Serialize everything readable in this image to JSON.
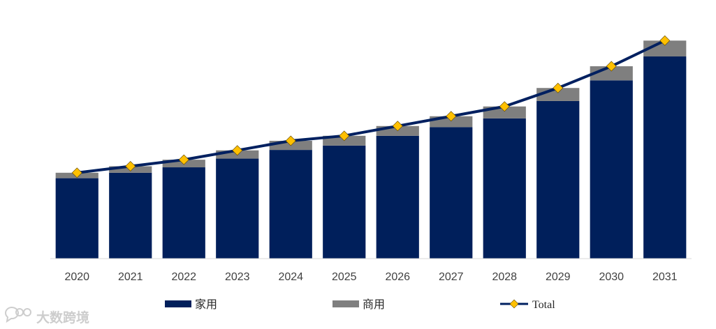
{
  "chart_data": {
    "type": "bar",
    "stacked": true,
    "categories": [
      "2020",
      "2021",
      "2022",
      "2023",
      "2024",
      "2025",
      "2026",
      "2027",
      "2028",
      "2029",
      "2030",
      "2031"
    ],
    "series": [
      {
        "name": "家用",
        "type": "bar",
        "color": "#001F5B",
        "values": [
          37,
          39.5,
          42,
          46,
          50,
          52,
          56.5,
          60.5,
          64.5,
          72.5,
          82,
          93
        ]
      },
      {
        "name": "商用",
        "type": "bar",
        "color": "#7F7F7F",
        "values": [
          2.5,
          3,
          3.5,
          3.8,
          4.2,
          4.5,
          4.5,
          5,
          5.5,
          6,
          6.5,
          7.3
        ]
      },
      {
        "name": "Total",
        "type": "line",
        "color": "#002060",
        "marker_color": "#FFC000",
        "values": [
          39.5,
          42.5,
          45.5,
          49.8,
          54.2,
          56.5,
          61,
          65.5,
          70,
          78.5,
          88.5,
          100.3
        ]
      }
    ],
    "ylim": [
      0,
      110
    ],
    "grid": false,
    "legend_position": "bottom",
    "title": "",
    "xlabel": "",
    "ylabel": ""
  },
  "watermark": {
    "text": "大数跨境",
    "icon": "chat-bubble-icon"
  }
}
